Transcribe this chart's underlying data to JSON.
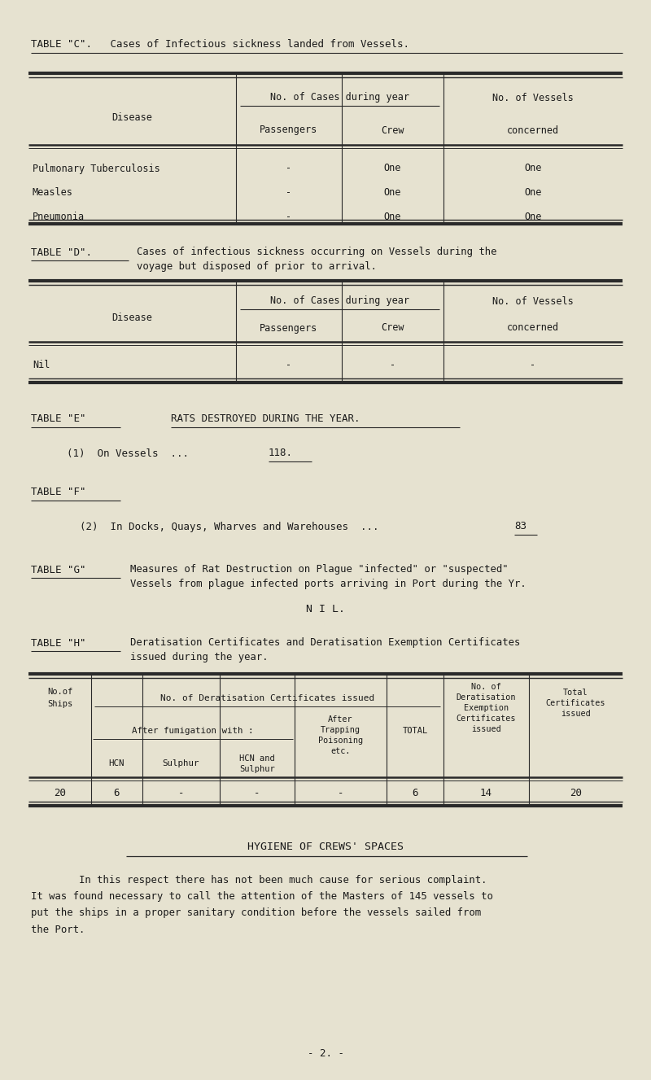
{
  "bg_color": "#e6e2d0",
  "text_color": "#1a1a1a",
  "page_width": 8.0,
  "page_height": 13.27,
  "table_c_title": "TABLE \"C\".   Cases of Infectious sickness landed from Vessels.",
  "table_c_header1": "No. of Cases during year",
  "table_c_header2": "No. of Vessels",
  "table_c_col1": "Disease",
  "table_c_col2": "Passengers",
  "table_c_col3": "Crew",
  "table_c_col4": "concerned",
  "table_c_rows": [
    [
      "Pulmonary Tuberculosis",
      "-",
      "One",
      "One"
    ],
    [
      "Measles",
      "-",
      "One",
      "One"
    ],
    [
      "Pneumonia",
      "-",
      "One",
      "One"
    ]
  ],
  "table_d_title": "TABLE \"D\".",
  "table_d_subtitle": "Cases of infectious sickness occurring on Vessels during the",
  "table_d_subtitle2": "voyage but disposed of prior to arrival.",
  "table_d_header1": "No. of Cases during year",
  "table_d_header2": "No. of Vessels",
  "table_d_col1": "Disease",
  "table_d_col2": "Passengers",
  "table_d_col3": "Crew",
  "table_d_col4": "concerned",
  "table_d_rows": [
    [
      "Nil",
      "-",
      "-",
      "-"
    ]
  ],
  "table_e_title": "TABLE \"E\"",
  "table_e_subtitle": "RATS DESTROYED DURING THE YEAR.",
  "table_e_line1_a": "(1)  On Vessels  ...  ",
  "table_e_line1_b": "118.",
  "table_f_title": "TABLE \"F\"",
  "table_f_line1_a": "        (2)  In Docks, Quays, Wharves and Warehouses  ...  ",
  "table_f_line1_b": "83",
  "table_g_title": "TABLE \"G\"",
  "table_g_text1": "Measures of Rat Destruction on Plague \"infected\" or \"suspected\"",
  "table_g_text2": "Vessels from plague infected ports arriving in Port during the Yr.",
  "table_g_nil": "N I L.",
  "table_h_title": "TABLE \"H\"",
  "table_h_text1": "Deratisation Certificates and Deratisation Exemption Certificates",
  "table_h_text2": "issued during the year.",
  "table_h_data": [
    "20",
    "6",
    "-",
    "-",
    "-",
    "6",
    "14",
    "20"
  ],
  "hygiene_title": "HYGIENE OF CREWS' SPACES",
  "hygiene_text1": "        In this respect there has not been much cause for serious complaint.",
  "hygiene_text2": "It was found necessary to call the attention of the Masters of 145 vessels to",
  "hygiene_text3": "put the ships in a proper sanitary condition before the vessels sailed from",
  "hygiene_text4": "the Port.",
  "page_num": "- 2. -"
}
